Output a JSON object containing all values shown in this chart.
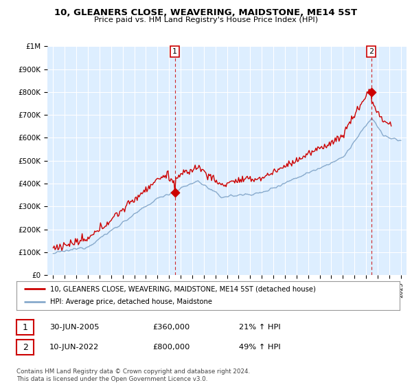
{
  "title": "10, GLEANERS CLOSE, WEAVERING, MAIDSTONE, ME14 5ST",
  "subtitle": "Price paid vs. HM Land Registry's House Price Index (HPI)",
  "ylim": [
    0,
    1000000
  ],
  "yticks": [
    0,
    100000,
    200000,
    300000,
    400000,
    500000,
    600000,
    700000,
    800000,
    900000,
    1000000
  ],
  "ytick_labels": [
    "£0",
    "£100K",
    "£200K",
    "£300K",
    "£400K",
    "£500K",
    "£600K",
    "£700K",
    "£800K",
    "£900K",
    "£1M"
  ],
  "sale1_date": 2005.5,
  "sale1_price": 360000,
  "sale2_date": 2022.44,
  "sale2_price": 800000,
  "line_color_red": "#cc0000",
  "line_color_blue": "#88aacc",
  "vline_color": "#cc0000",
  "background_color": "#ffffff",
  "chart_bg_color": "#ddeeff",
  "grid_color": "#ffffff",
  "legend_label_red": "10, GLEANERS CLOSE, WEAVERING, MAIDSTONE, ME14 5ST (detached house)",
  "legend_label_blue": "HPI: Average price, detached house, Maidstone",
  "footer": "Contains HM Land Registry data © Crown copyright and database right 2024.\nThis data is licensed under the Open Government Licence v3.0.",
  "box_date1": "30-JUN-2005",
  "box_price1": "£360,000",
  "box_hpi1": "21% ↑ HPI",
  "box_date2": "10-JUN-2022",
  "box_price2": "£800,000",
  "box_hpi2": "49% ↑ HPI"
}
